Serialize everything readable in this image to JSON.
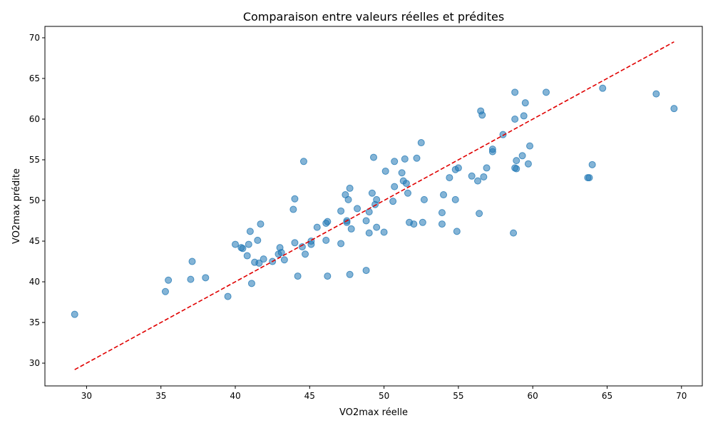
{
  "chart_data": {
    "type": "scatter",
    "title": "Comparaison entre valeurs réelles et prédites",
    "xlabel": "VO2max réelle",
    "ylabel": "VO2max prédite",
    "xlim": [
      27.2,
      71.4
    ],
    "ylim": [
      27.2,
      71.4
    ],
    "xticks": [
      30,
      35,
      40,
      45,
      50,
      55,
      60,
      65,
      70
    ],
    "yticks": [
      30,
      35,
      40,
      45,
      50,
      55,
      60,
      65,
      70
    ],
    "grid": false,
    "point_color": "#1f77b4",
    "line_color": "#e00000",
    "reference_line": {
      "x": [
        29.2,
        69.5
      ],
      "y": [
        29.2,
        69.5
      ],
      "style": "dashed"
    },
    "points": [
      [
        29.2,
        36.0
      ],
      [
        35.3,
        38.8
      ],
      [
        35.5,
        40.2
      ],
      [
        37.0,
        40.3
      ],
      [
        37.1,
        42.5
      ],
      [
        38.0,
        40.5
      ],
      [
        39.5,
        38.2
      ],
      [
        40.0,
        44.6
      ],
      [
        40.4,
        44.2
      ],
      [
        40.5,
        44.1
      ],
      [
        40.8,
        43.2
      ],
      [
        40.9,
        44.6
      ],
      [
        41.0,
        46.2
      ],
      [
        41.1,
        39.8
      ],
      [
        41.3,
        42.4
      ],
      [
        41.5,
        45.1
      ],
      [
        41.6,
        42.3
      ],
      [
        41.7,
        47.1
      ],
      [
        41.9,
        42.8
      ],
      [
        42.5,
        42.5
      ],
      [
        42.9,
        43.4
      ],
      [
        43.0,
        44.2
      ],
      [
        43.1,
        43.6
      ],
      [
        43.3,
        42.7
      ],
      [
        43.9,
        48.9
      ],
      [
        44.0,
        50.2
      ],
      [
        44.0,
        44.8
      ],
      [
        44.2,
        40.7
      ],
      [
        44.5,
        44.3
      ],
      [
        44.6,
        54.8
      ],
      [
        44.7,
        43.4
      ],
      [
        45.1,
        44.6
      ],
      [
        45.1,
        45.0
      ],
      [
        45.5,
        46.7
      ],
      [
        46.1,
        45.1
      ],
      [
        46.1,
        47.2
      ],
      [
        46.2,
        47.4
      ],
      [
        46.2,
        40.7
      ],
      [
        47.1,
        48.7
      ],
      [
        47.1,
        44.7
      ],
      [
        47.4,
        50.7
      ],
      [
        47.5,
        47.3
      ],
      [
        47.5,
        47.5
      ],
      [
        47.6,
        50.1
      ],
      [
        47.7,
        51.5
      ],
      [
        47.7,
        40.9
      ],
      [
        47.8,
        46.5
      ],
      [
        48.2,
        49.0
      ],
      [
        48.8,
        47.5
      ],
      [
        48.8,
        41.4
      ],
      [
        49.0,
        46.0
      ],
      [
        49.0,
        48.6
      ],
      [
        49.2,
        50.9
      ],
      [
        49.3,
        55.3
      ],
      [
        49.4,
        49.5
      ],
      [
        49.5,
        50.1
      ],
      [
        49.5,
        46.7
      ],
      [
        50.0,
        46.1
      ],
      [
        50.1,
        53.6
      ],
      [
        50.6,
        49.9
      ],
      [
        50.7,
        51.7
      ],
      [
        50.7,
        54.8
      ],
      [
        51.2,
        53.4
      ],
      [
        51.3,
        52.4
      ],
      [
        51.4,
        55.1
      ],
      [
        51.5,
        52.1
      ],
      [
        51.6,
        50.9
      ],
      [
        51.7,
        47.3
      ],
      [
        52.0,
        47.1
      ],
      [
        52.2,
        55.2
      ],
      [
        52.5,
        57.1
      ],
      [
        52.6,
        47.3
      ],
      [
        52.7,
        50.1
      ],
      [
        53.9,
        48.5
      ],
      [
        53.9,
        47.1
      ],
      [
        54.0,
        50.7
      ],
      [
        54.4,
        52.8
      ],
      [
        54.8,
        53.8
      ],
      [
        54.8,
        50.1
      ],
      [
        54.9,
        46.2
      ],
      [
        55.0,
        54.0
      ],
      [
        55.9,
        53.0
      ],
      [
        56.3,
        52.4
      ],
      [
        56.4,
        48.4
      ],
      [
        56.5,
        61.0
      ],
      [
        56.6,
        60.5
      ],
      [
        56.7,
        52.9
      ],
      [
        56.9,
        54.0
      ],
      [
        58.0,
        58.1
      ],
      [
        58.7,
        46.0
      ],
      [
        58.8,
        63.3
      ],
      [
        58.8,
        60.0
      ],
      [
        58.8,
        54.0
      ],
      [
        58.9,
        53.9
      ],
      [
        58.9,
        54.9
      ],
      [
        57.3,
        56.3
      ],
      [
        57.3,
        56.0
      ],
      [
        59.3,
        55.5
      ],
      [
        59.4,
        60.4
      ],
      [
        59.5,
        62.0
      ],
      [
        59.7,
        54.5
      ],
      [
        59.8,
        56.7
      ],
      [
        60.9,
        63.3
      ],
      [
        63.7,
        52.8
      ],
      [
        63.8,
        52.8
      ],
      [
        64.0,
        54.4
      ],
      [
        64.7,
        63.8
      ],
      [
        68.3,
        63.1
      ],
      [
        69.5,
        61.3
      ]
    ]
  }
}
